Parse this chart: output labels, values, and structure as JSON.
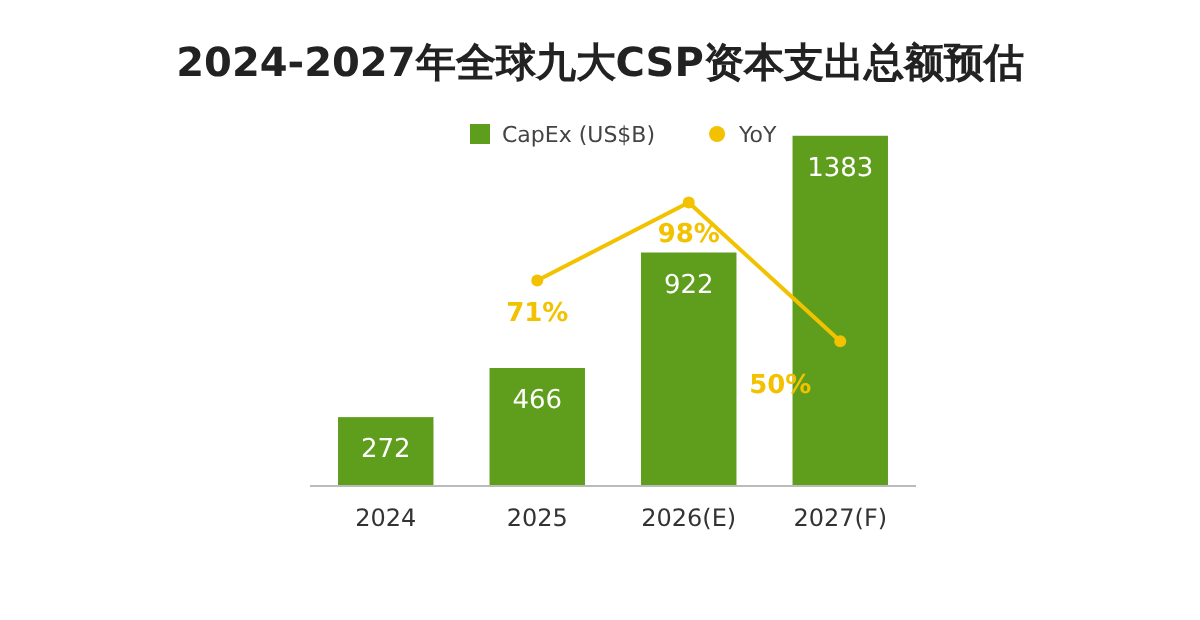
{
  "chart_data": {
    "type": "bar",
    "title": "2024-2027年全球九大CSP资本支出总额预估",
    "categories": [
      "2024",
      "2025",
      "2026(E)",
      "2027(F)"
    ],
    "series": [
      {
        "name": "CapEx (US$B)",
        "color": "#5e9e1c",
        "values": [
          272,
          466,
          922,
          1383
        ]
      },
      {
        "name": "YoY",
        "type": "line",
        "axis": "y2",
        "color": "#f2c200",
        "values": [
          null,
          71,
          98,
          50
        ],
        "value_labels": [
          null,
          "71%",
          "98%",
          "50%"
        ]
      }
    ],
    "tick_labels": "x",
    "data_labels": true,
    "legend": "top",
    "marker": "circle"
  }
}
